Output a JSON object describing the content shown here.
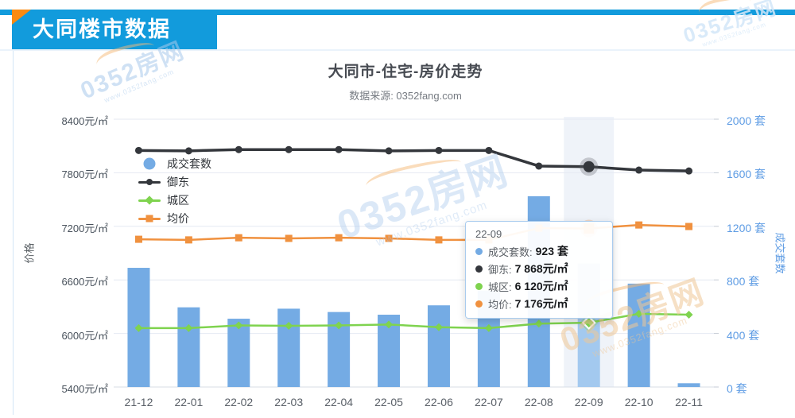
{
  "header": {
    "banner_title": "大同楼市数据"
  },
  "colors": {
    "banner": "#129BDC",
    "corner": "#FB8A10",
    "bar": "#74ABE4",
    "bar_hover": "#A3C9EF",
    "yudong": "#34373C",
    "chengqu": "#7FD34F",
    "junjia": "#F0913F",
    "right_axis_text": "#5E9CE4",
    "grid_line": "#E4E9F2",
    "hover_band": "rgba(140,170,210,0.14)"
  },
  "watermark": {
    "text": "0352房网",
    "subtext": "www.0352fang.com"
  },
  "chart_data": {
    "type": "combo",
    "title": "大同市-住宅-房价走势",
    "subtitle": "数据来源: 0352fang.com",
    "grid": true,
    "legend_position": "inside-top-left",
    "categories": [
      "21-12",
      "22-01",
      "22-02",
      "22-03",
      "22-04",
      "22-05",
      "22-06",
      "22-07",
      "22-08",
      "22-09",
      "22-10",
      "22-11"
    ],
    "series": [
      {
        "name": "成交套数",
        "key": "deal-count",
        "type": "bar",
        "axis": "right",
        "marker": "bigcircle",
        "color": "#74ABE4",
        "hover_color": "#A3C9EF",
        "values": [
          890,
          595,
          510,
          585,
          560,
          540,
          610,
          720,
          1425,
          923,
          772,
          28
        ]
      },
      {
        "name": "御东",
        "key": "yudong",
        "type": "line",
        "axis": "left",
        "marker": "circle",
        "color": "#34373C",
        "values": [
          8050,
          8045,
          8060,
          8060,
          8060,
          8045,
          8050,
          8050,
          7875,
          7868,
          7830,
          7820
        ]
      },
      {
        "name": "城区",
        "key": "chengqu",
        "type": "line",
        "axis": "left",
        "marker": "diamond",
        "color": "#7FD34F",
        "values": [
          6060,
          6060,
          6090,
          6085,
          6090,
          6100,
          6070,
          6060,
          6110,
          6120,
          6220,
          6210
        ]
      },
      {
        "name": "均价",
        "key": "junjia",
        "type": "line",
        "axis": "left",
        "marker": "square",
        "color": "#F0913F",
        "values": [
          7055,
          7048,
          7072,
          7065,
          7072,
          7065,
          7048,
          7048,
          7180,
          7176,
          7215,
          7198
        ]
      }
    ],
    "left_axis": {
      "name": "价格",
      "min": 5400,
      "max": 8400,
      "step": 600,
      "tick_labels": [
        "8400元/㎡",
        "7800元/㎡",
        "7200元/㎡",
        "6600元/㎡",
        "6000元/㎡",
        "5400元/㎡"
      ]
    },
    "right_axis": {
      "name": "成交套数",
      "min": 0,
      "max": 2000,
      "step": 400,
      "tick_labels": [
        "2000 套",
        "1600 套",
        "1200 套",
        "800 套",
        "400 套",
        "0 套"
      ]
    },
    "highlight": {
      "index": 9,
      "category": "22-09"
    },
    "tooltip": {
      "title": "22-09",
      "rows": [
        {
          "label": "成交套数",
          "value": "923 套",
          "color": "#74ABE4"
        },
        {
          "label": "御东",
          "value": "7 868元/㎡",
          "color": "#34373C"
        },
        {
          "label": "城区",
          "value": "6 120元/㎡",
          "color": "#7FD34F"
        },
        {
          "label": "均价",
          "value": "7 176元/㎡",
          "color": "#F0913F"
        }
      ]
    }
  }
}
